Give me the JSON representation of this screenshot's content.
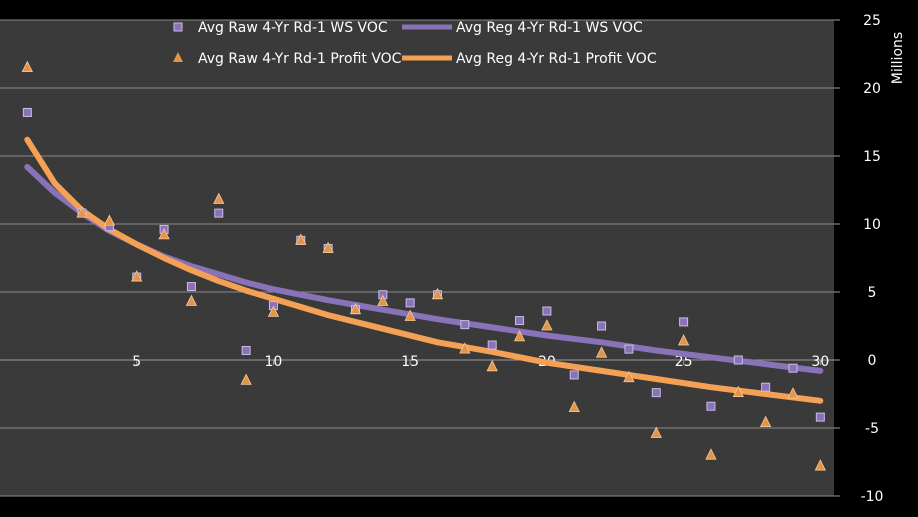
{
  "chart_data": {
    "type": "scatter",
    "y_axis_title": "Millions",
    "x_ticks": [
      5,
      10,
      15,
      20,
      25,
      30
    ],
    "y_ticks": [
      -10,
      -5,
      0,
      5,
      10,
      15,
      20,
      25
    ],
    "xlim": [
      0,
      30.5
    ],
    "ylim": [
      -10,
      25
    ],
    "y_axis_position": "right",
    "grid": "horizontal",
    "legend_position": "top",
    "series": [
      {
        "name": "Avg Raw 4-Yr Rd-1 WS VOC",
        "kind": "scatter",
        "marker": "square",
        "color": "#8a72b8",
        "x": [
          1,
          3,
          4,
          5,
          6,
          7,
          8,
          9,
          10,
          11,
          12,
          13,
          14,
          15,
          16,
          17,
          18,
          19,
          20,
          21,
          22,
          23,
          24,
          25,
          26,
          27,
          28,
          29,
          30
        ],
        "y": [
          18.2,
          10.8,
          9.8,
          6.1,
          9.6,
          5.4,
          10.8,
          0.7,
          4,
          8.8,
          8.2,
          3.7,
          4.8,
          4.2,
          4.8,
          2.6,
          1.1,
          2.9,
          3.6,
          -1.1,
          2.5,
          0.8,
          -2.4,
          2.8,
          -3.4,
          0,
          -2,
          -0.6,
          -4.2
        ]
      },
      {
        "name": "Avg Raw 4-Yr Rd-1 Profit VOC",
        "kind": "scatter",
        "marker": "triangle",
        "color": "#e2944a",
        "x": [
          1,
          3,
          4,
          5,
          6,
          7,
          8,
          9,
          10,
          11,
          12,
          13,
          14,
          15,
          16,
          17,
          18,
          19,
          20,
          21,
          22,
          23,
          24,
          25,
          26,
          27,
          28,
          29,
          30
        ],
        "y": [
          21.5,
          10.8,
          10.2,
          6.1,
          9.2,
          4.3,
          11.8,
          -1.5,
          3.5,
          8.8,
          8.2,
          3.7,
          4.3,
          3.2,
          4.8,
          0.8,
          -0.5,
          1.7,
          2.5,
          -3.5,
          0.5,
          -1.3,
          -5.4,
          1.4,
          -7,
          -2.4,
          -4.6,
          -2.5,
          -7.8
        ]
      },
      {
        "name": "Avg Reg 4-Yr Rd-1 WS VOC",
        "kind": "line",
        "color": "#8a72b8",
        "x": [
          1,
          2,
          3,
          4,
          5,
          6,
          7,
          8,
          9,
          10,
          12,
          14,
          16,
          18,
          20,
          22,
          24,
          26,
          28,
          30
        ],
        "y": [
          14.2,
          12.3,
          10.8,
          9.5,
          8.5,
          7.6,
          6.9,
          6.3,
          5.7,
          5.2,
          4.4,
          3.7,
          3.0,
          2.4,
          1.8,
          1.3,
          0.7,
          0.2,
          -0.3,
          -0.8
        ]
      },
      {
        "name": "Avg Reg 4-Yr Rd-1 Profit VOC",
        "kind": "line",
        "color": "#f4a155",
        "x": [
          1,
          2,
          3,
          4,
          5,
          6,
          7,
          8,
          9,
          10,
          12,
          14,
          16,
          18,
          20,
          22,
          24,
          26,
          28,
          30
        ],
        "y": [
          16.2,
          13.0,
          11.0,
          9.6,
          8.5,
          7.5,
          6.6,
          5.8,
          5.1,
          4.5,
          3.3,
          2.3,
          1.3,
          0.6,
          -0.2,
          -0.8,
          -1.4,
          -2.0,
          -2.5,
          -3.0
        ]
      }
    ]
  }
}
